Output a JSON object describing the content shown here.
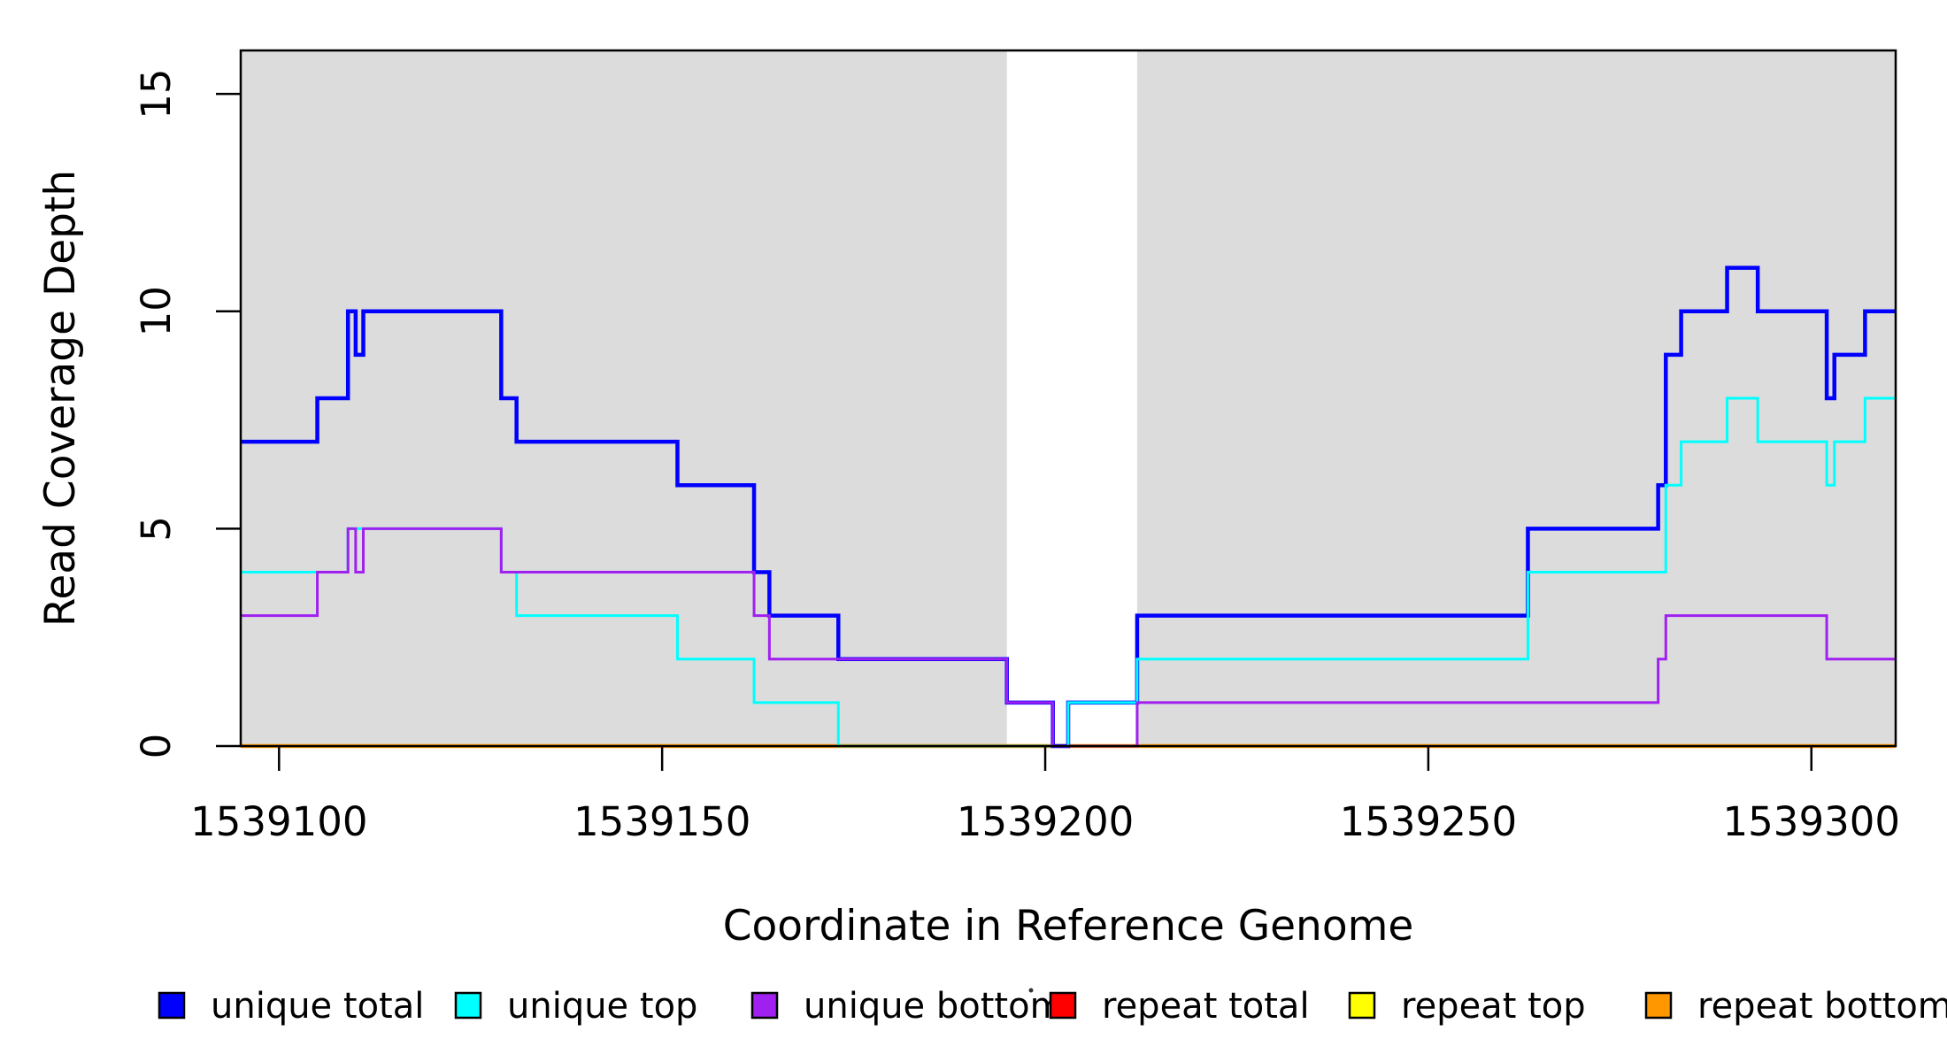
{
  "chart_data": {
    "type": "line",
    "subtype": "step",
    "title": "",
    "xlabel": "Coordinate in Reference Genome",
    "ylabel": "Read Coverage Depth",
    "xlim": [
      1539095,
      1539311
    ],
    "ylim": [
      0,
      16
    ],
    "x_ticks": [
      1539100,
      1539150,
      1539200,
      1539250,
      1539300
    ],
    "x_tick_labels": [
      "1539100",
      "1539150",
      "1539200",
      "1539250",
      "1539300"
    ],
    "y_ticks": [
      0,
      5,
      10,
      15
    ],
    "y_tick_labels": [
      "0",
      "5",
      "10",
      "15"
    ],
    "grid": false,
    "legend_position": "bottom",
    "background_color": "#DCDCDC",
    "highlight_regions": [
      [
        1539095,
        1539195
      ],
      [
        1539212,
        1539311
      ]
    ],
    "gap_region": [
      1539195,
      1539212
    ],
    "series": [
      {
        "name": "unique total",
        "color": "#0000FF",
        "points": [
          [
            1539095,
            7
          ],
          [
            1539105,
            8
          ],
          [
            1539109,
            10
          ],
          [
            1539110,
            9
          ],
          [
            1539111,
            10
          ],
          [
            1539129,
            8
          ],
          [
            1539131,
            7
          ],
          [
            1539152,
            6
          ],
          [
            1539162,
            4
          ],
          [
            1539164,
            3
          ],
          [
            1539173,
            2
          ],
          [
            1539195,
            1
          ],
          [
            1539201,
            0
          ],
          [
            1539203,
            1
          ],
          [
            1539212,
            3
          ],
          [
            1539263,
            5
          ],
          [
            1539280,
            6
          ],
          [
            1539281,
            9
          ],
          [
            1539283,
            10
          ],
          [
            1539289,
            11
          ],
          [
            1539293,
            10
          ],
          [
            1539302,
            8
          ],
          [
            1539303,
            9
          ],
          [
            1539307,
            10
          ],
          [
            1539311,
            10
          ]
        ]
      },
      {
        "name": "unique top",
        "color": "#00FFFF",
        "points": [
          [
            1539095,
            4
          ],
          [
            1539109,
            5
          ],
          [
            1539129,
            4
          ],
          [
            1539131,
            3
          ],
          [
            1539152,
            2
          ],
          [
            1539162,
            1
          ],
          [
            1539173,
            0
          ],
          [
            1539203,
            1
          ],
          [
            1539212,
            2
          ],
          [
            1539263,
            4
          ],
          [
            1539281,
            6
          ],
          [
            1539283,
            7
          ],
          [
            1539289,
            8
          ],
          [
            1539293,
            7
          ],
          [
            1539302,
            6
          ],
          [
            1539303,
            7
          ],
          [
            1539307,
            8
          ],
          [
            1539311,
            8
          ]
        ]
      },
      {
        "name": "unique bottom",
        "color": "#A020F0",
        "points": [
          [
            1539095,
            3
          ],
          [
            1539105,
            4
          ],
          [
            1539109,
            5
          ],
          [
            1539110,
            4
          ],
          [
            1539111,
            5
          ],
          [
            1539129,
            4
          ],
          [
            1539162,
            3
          ],
          [
            1539164,
            2
          ],
          [
            1539195,
            1
          ],
          [
            1539201,
            0
          ],
          [
            1539212,
            1
          ],
          [
            1539280,
            2
          ],
          [
            1539281,
            3
          ],
          [
            1539302,
            2
          ],
          [
            1539311,
            2
          ]
        ]
      },
      {
        "name": "repeat total",
        "color": "#FF0000",
        "points": [
          [
            1539095,
            0
          ],
          [
            1539311,
            0
          ]
        ]
      },
      {
        "name": "repeat top",
        "color": "#FFFF00",
        "points": [
          [
            1539095,
            0
          ],
          [
            1539311,
            0
          ]
        ]
      },
      {
        "name": "repeat bottom",
        "color": "#FF9800",
        "points": [
          [
            1539095,
            0
          ],
          [
            1539311,
            0
          ]
        ]
      }
    ]
  },
  "legend": {
    "items": [
      {
        "label": "unique total",
        "color": "#0000FF"
      },
      {
        "label": "unique top",
        "color": "#00FFFF"
      },
      {
        "label": "unique bottom",
        "color": "#A020F0"
      },
      {
        "label": "repeat total",
        "color": "#FF0000"
      },
      {
        "label": "repeat top",
        "color": "#FFFF00"
      },
      {
        "label": "repeat bottom",
        "color": "#FF9800"
      }
    ]
  }
}
